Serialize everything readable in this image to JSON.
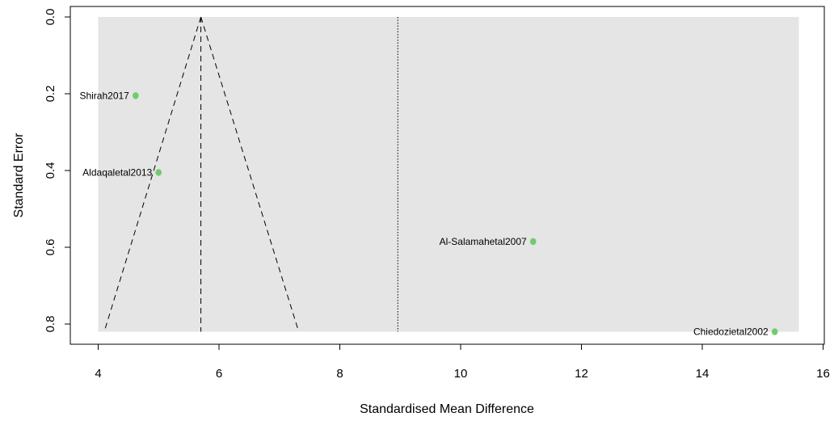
{
  "chart_data": {
    "type": "scatter",
    "subtype": "funnel",
    "title": "",
    "xlabel": "Standardised Mean Difference",
    "ylabel": "Standard Error",
    "xlim": [
      3.5,
      16.0
    ],
    "ylim": [
      0.0,
      0.86
    ],
    "y_inverted": true,
    "x_ticks": [
      4,
      6,
      8,
      10,
      12,
      14,
      16
    ],
    "y_ticks": [
      0.0,
      0.2,
      0.4,
      0.6,
      0.8
    ],
    "y_tick_labels": [
      "0.0",
      "0.2",
      "0.4",
      "0.6",
      "0.8"
    ],
    "background_region": {
      "x": [
        4.0,
        15.6
      ],
      "y": [
        0.0,
        0.82
      ],
      "color": "#e5e5e5"
    },
    "funnel": {
      "apex_x": 5.7,
      "apex_y": 0.0,
      "left_x_at_max": 4.1,
      "right_x_at_max": 7.32,
      "max_se": 0.82,
      "line_style": "dashed"
    },
    "pooled_estimate_line": {
      "x": 5.7,
      "line_style": "dashed"
    },
    "reference_line": {
      "x": 8.96,
      "line_style": "dotted"
    },
    "marker_color": "#6fcc6f",
    "points": [
      {
        "label": "Shirah2017",
        "x": 4.62,
        "y": 0.205
      },
      {
        "label": "Aldaqaletal2013",
        "x": 5.0,
        "y": 0.405
      },
      {
        "label": "Al-Salamahetal2007",
        "x": 11.2,
        "y": 0.585
      },
      {
        "label": "Chiedozietal2002",
        "x": 15.2,
        "y": 0.82
      }
    ],
    "grid": false,
    "legend": "none"
  }
}
